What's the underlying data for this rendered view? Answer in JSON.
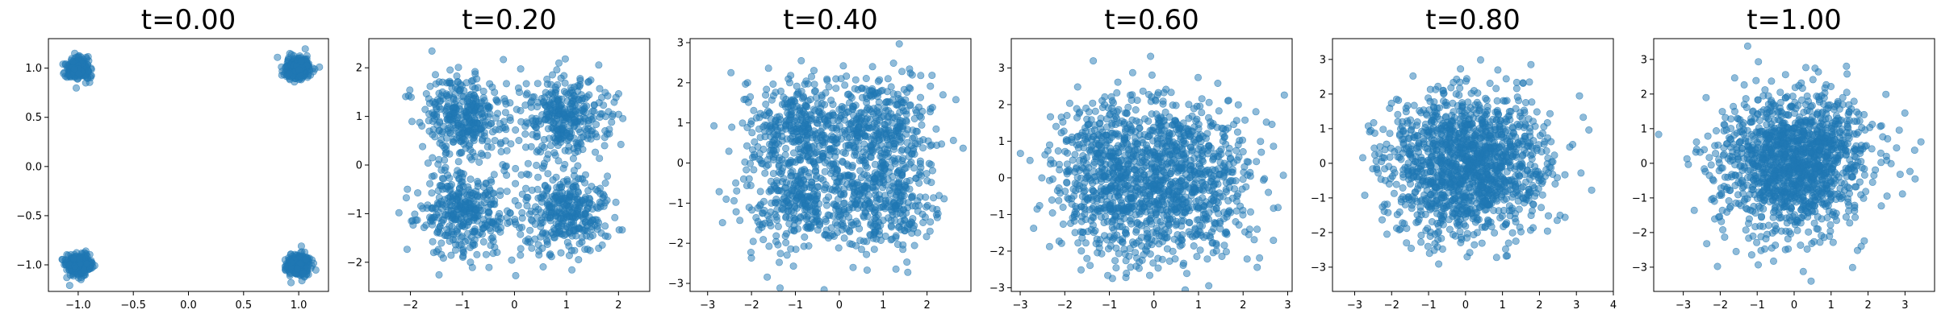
{
  "colors": {
    "point": "#1f77b4",
    "point_opacity": 0.5
  },
  "chart_data": [
    {
      "type": "scatter",
      "title": "t=0.00",
      "xlabel": "",
      "ylabel": "",
      "grid": false,
      "xlim": [
        -1.27,
        1.27
      ],
      "ylim": [
        -1.27,
        1.3
      ],
      "xticks": [
        -1.0,
        -0.5,
        0.0,
        0.5,
        1.0
      ],
      "xtick_labels": [
        "−1.0",
        "−0.5",
        "0.0",
        "0.5",
        "1.0"
      ],
      "yticks": [
        -1.0,
        -0.5,
        0.0,
        0.5,
        1.0
      ],
      "ytick_labels": [
        "−1.0",
        "−0.5",
        "0.0",
        "0.5",
        "1.0"
      ],
      "distribution": {
        "kind": "four_clusters",
        "centers": [
          [
            -1,
            1
          ],
          [
            1,
            1
          ],
          [
            -1,
            -1
          ],
          [
            1,
            -1
          ]
        ],
        "spread": 0.05
      }
    },
    {
      "type": "scatter",
      "title": "t=0.20",
      "xlabel": "",
      "ylabel": "",
      "grid": false,
      "xlim": [
        -2.8,
        2.6
      ],
      "ylim": [
        -2.6,
        2.6
      ],
      "xticks": [
        -2,
        -1,
        0,
        1,
        2
      ],
      "xtick_labels": [
        "−2",
        "−1",
        "0",
        "1",
        "2"
      ],
      "yticks": [
        -2,
        -1,
        0,
        1,
        2
      ],
      "ytick_labels": [
        "−2",
        "−1",
        "0",
        "1",
        "2"
      ],
      "distribution": {
        "kind": "four_clusters",
        "centers": [
          [
            -0.98,
            0.98
          ],
          [
            0.98,
            0.98
          ],
          [
            -0.98,
            -0.98
          ],
          [
            0.98,
            -0.98
          ]
        ],
        "spread": 0.42
      }
    },
    {
      "type": "scatter",
      "title": "t=0.40",
      "xlabel": "",
      "ylabel": "",
      "grid": false,
      "xlim": [
        -3.4,
        3.0
      ],
      "ylim": [
        -3.2,
        3.1
      ],
      "xticks": [
        -3,
        -2,
        -1,
        0,
        1,
        2
      ],
      "xtick_labels": [
        "−3",
        "−2",
        "−1",
        "0",
        "1",
        "2"
      ],
      "yticks": [
        -3,
        -2,
        -1,
        0,
        1,
        2,
        3
      ],
      "ytick_labels": [
        "−3",
        "−2",
        "−1",
        "0",
        "1",
        "2",
        "3"
      ],
      "distribution": {
        "kind": "four_clusters",
        "centers": [
          [
            -0.92,
            0.92
          ],
          [
            0.92,
            0.92
          ],
          [
            -0.92,
            -0.92
          ],
          [
            0.92,
            -0.92
          ]
        ],
        "spread": 0.62
      }
    },
    {
      "type": "scatter",
      "title": "t=0.60",
      "xlabel": "",
      "ylabel": "",
      "grid": false,
      "xlim": [
        -3.2,
        3.1
      ],
      "ylim": [
        -3.1,
        3.8
      ],
      "xticks": [
        -3,
        -2,
        -1,
        0,
        1,
        2,
        3
      ],
      "xtick_labels": [
        "−3",
        "−2",
        "−1",
        "0",
        "1",
        "2",
        "3"
      ],
      "yticks": [
        -3,
        -2,
        -1,
        0,
        1,
        2,
        3
      ],
      "ytick_labels": [
        "−3",
        "−2",
        "−1",
        "0",
        "1",
        "2",
        "3"
      ],
      "distribution": {
        "kind": "four_clusters",
        "centers": [
          [
            -0.8,
            0.8
          ],
          [
            0.8,
            0.8
          ],
          [
            -0.8,
            -0.8
          ],
          [
            0.8,
            -0.8
          ]
        ],
        "spread": 0.75
      }
    },
    {
      "type": "scatter",
      "title": "t=0.80",
      "xlabel": "",
      "ylabel": "",
      "grid": false,
      "xlim": [
        -3.6,
        4.0
      ],
      "ylim": [
        -3.7,
        3.6
      ],
      "xticks": [
        -3,
        -2,
        -1,
        0,
        1,
        2,
        3,
        4
      ],
      "xtick_labels": [
        "−3",
        "−2",
        "−1",
        "0",
        "1",
        "2",
        "3",
        "4"
      ],
      "yticks": [
        -3,
        -2,
        -1,
        0,
        1,
        2,
        3
      ],
      "ytick_labels": [
        "−3",
        "−2",
        "−1",
        "0",
        "1",
        "2",
        "3"
      ],
      "distribution": {
        "kind": "four_clusters",
        "centers": [
          [
            -0.6,
            0.6
          ],
          [
            0.6,
            0.6
          ],
          [
            -0.6,
            -0.6
          ],
          [
            0.6,
            -0.6
          ]
        ],
        "spread": 0.86
      }
    },
    {
      "type": "scatter",
      "title": "t=1.00",
      "xlabel": "",
      "ylabel": "",
      "grid": false,
      "xlim": [
        -3.8,
        3.8
      ],
      "ylim": [
        -3.7,
        3.6
      ],
      "xticks": [
        -3,
        -2,
        -1,
        0,
        1,
        2,
        3
      ],
      "xtick_labels": [
        "−3",
        "−2",
        "−1",
        "0",
        "1",
        "2",
        "3"
      ],
      "yticks": [
        -3,
        -2,
        -1,
        0,
        1,
        2,
        3
      ],
      "ytick_labels": [
        "−3",
        "−2",
        "−1",
        "0",
        "1",
        "2",
        "3"
      ],
      "distribution": {
        "kind": "gaussian",
        "centers": [
          [
            0,
            0
          ]
        ],
        "spread": 1.0
      }
    }
  ]
}
